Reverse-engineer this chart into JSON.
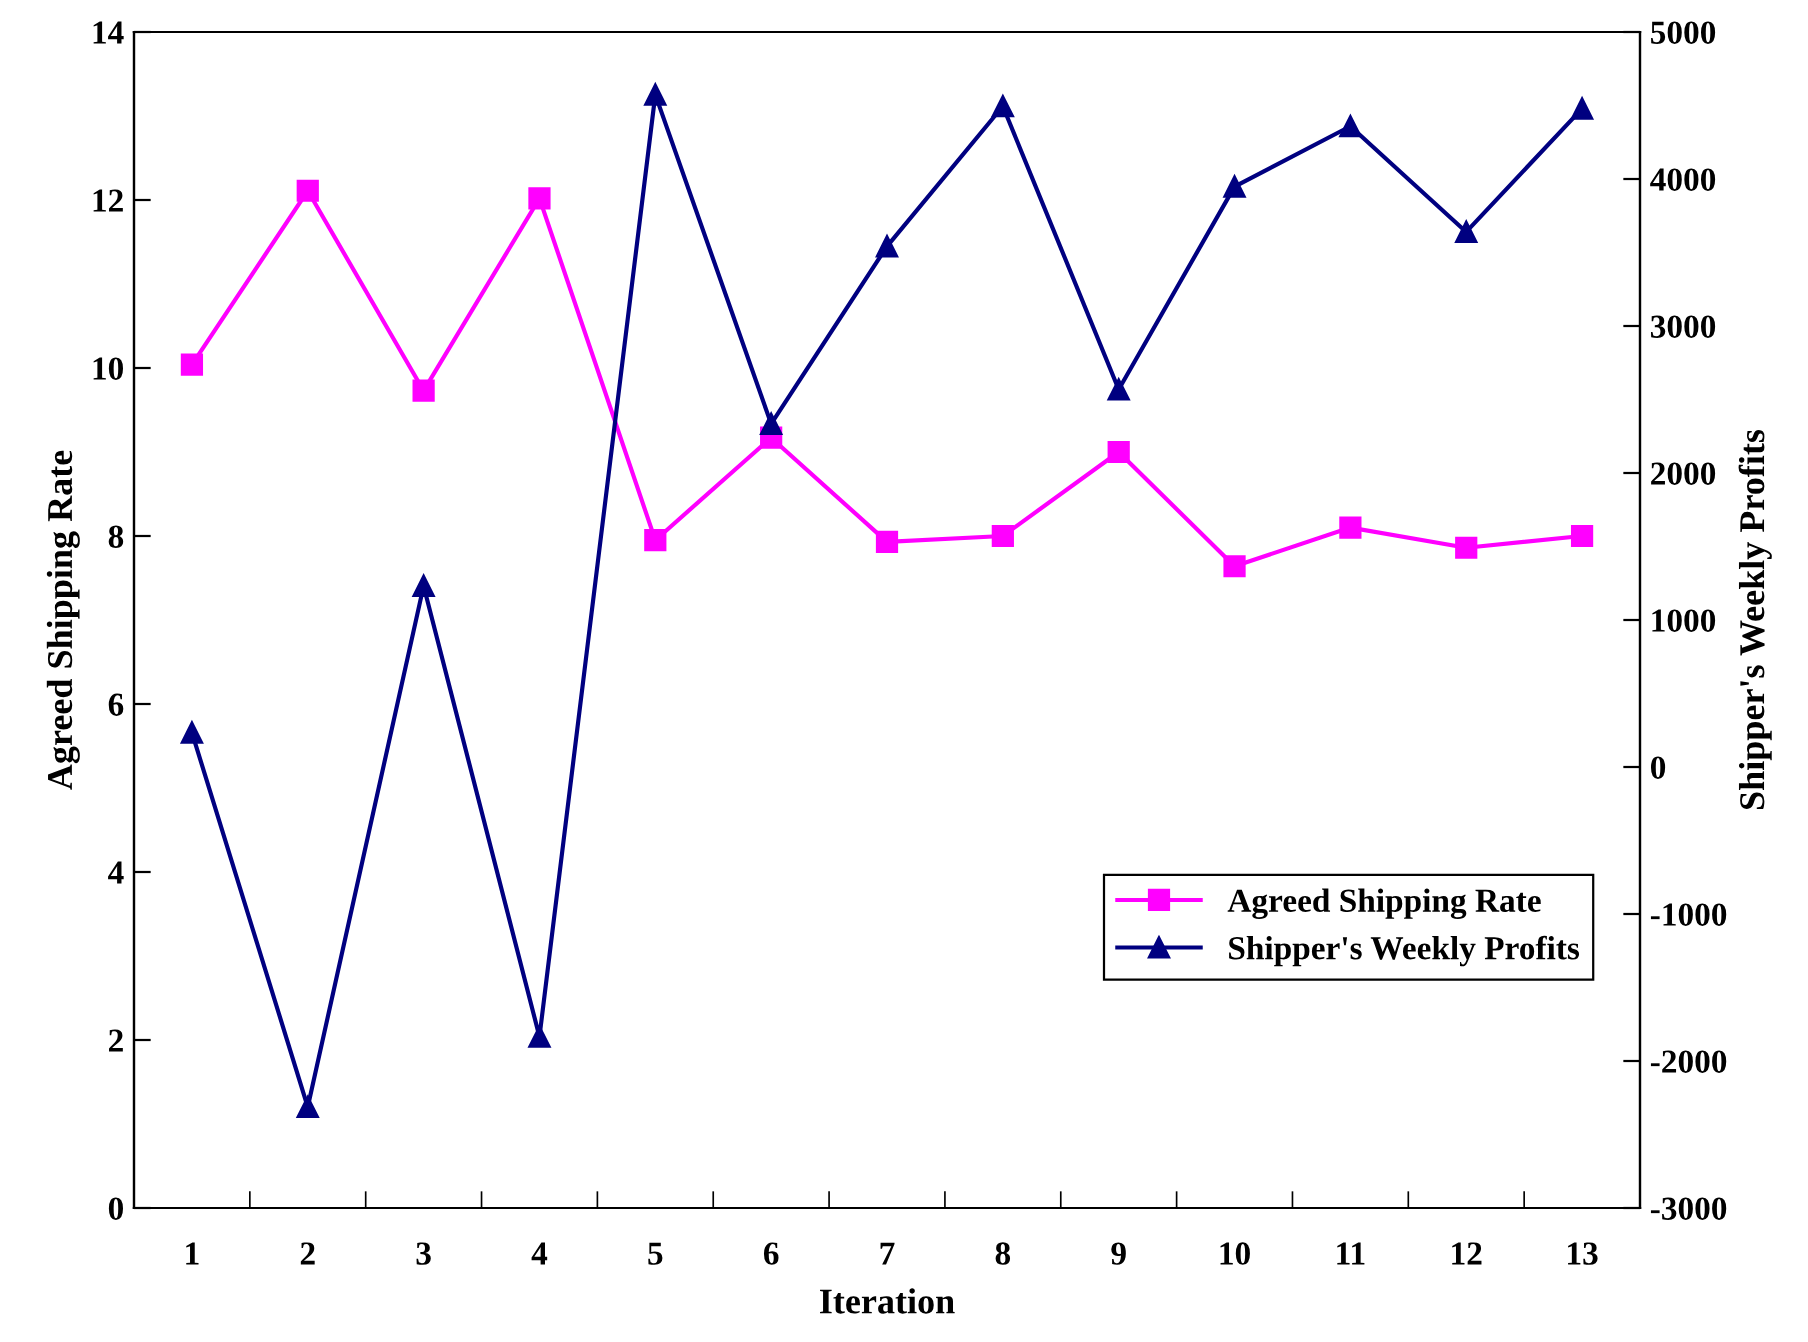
{
  "chart_data": {
    "type": "line",
    "xlabel": "Iteration",
    "ylabel": "Agreed Shipping Rate",
    "y2label": "Shipper's Weekly Profits",
    "categories": [
      "1",
      "2",
      "3",
      "4",
      "5",
      "6",
      "7",
      "8",
      "9",
      "10",
      "11",
      "12",
      "13"
    ],
    "series": [
      {
        "name": "Agreed Shipping Rate",
        "color": "#ff00ff",
        "marker": "square",
        "values": [
          10.04,
          12.11,
          9.73,
          12.02,
          7.95,
          9.17,
          7.93,
          8.0,
          9.0,
          7.64,
          8.1,
          7.86,
          8.0
        ]
      },
      {
        "name": "Shipper's Weekly Profits",
        "color": "#000080",
        "marker": "triangle",
        "axis": "y2",
        "values": [
          234,
          -2313,
          1232,
          -1835,
          4574,
          2334,
          3542,
          4495,
          2568,
          3948,
          4359,
          3640,
          4479
        ]
      }
    ],
    "ylim": [
      0,
      14
    ],
    "yticks": [
      0,
      2,
      4,
      6,
      8,
      10,
      12,
      14
    ],
    "y2lim": [
      -3000,
      5000
    ],
    "y2ticks": [
      -3000,
      -2000,
      -1000,
      0,
      1000,
      2000,
      3000,
      4000,
      5000
    ],
    "grid": false,
    "legend": "bottom right",
    "line_style": "solid"
  }
}
